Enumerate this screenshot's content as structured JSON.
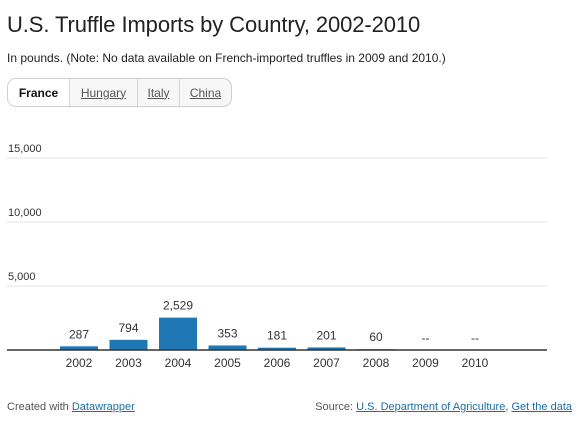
{
  "title": "U.S. Truffle Imports by Country, 2002-2010",
  "subtitle": "In pounds. (Note: No data available on French-imported truffles in 2009 and 2010.)",
  "tabs": [
    {
      "label": "France",
      "active": true
    },
    {
      "label": "Hungary",
      "active": false
    },
    {
      "label": "Italy",
      "active": false
    },
    {
      "label": "China",
      "active": false
    }
  ],
  "footer": {
    "created_prefix": "Created with",
    "created_link": "Datawrapper",
    "source_prefix": "Source:",
    "source_link": "U.S. Department of Agriculture",
    "separator": ",",
    "get_data_link": "Get the data"
  },
  "colors": {
    "bar": "#1f77b4",
    "link": "#1a6ea8",
    "grid": "#e3e3e3"
  },
  "chart_data": {
    "type": "bar",
    "categories": [
      "2002",
      "2003",
      "2004",
      "2005",
      "2006",
      "2007",
      "2008",
      "2009",
      "2010"
    ],
    "values": [
      287,
      794,
      2529,
      353,
      181,
      201,
      60,
      null,
      null
    ],
    "value_labels": [
      "287",
      "794",
      "2,529",
      "353",
      "181",
      "201",
      "60",
      "--",
      "--"
    ],
    "yticks": [
      5000,
      10000,
      15000
    ],
    "ytick_labels": [
      "5,000",
      "10,000",
      "15,000"
    ],
    "ylim": [
      0,
      15000
    ],
    "grid": true,
    "legend": "none"
  }
}
